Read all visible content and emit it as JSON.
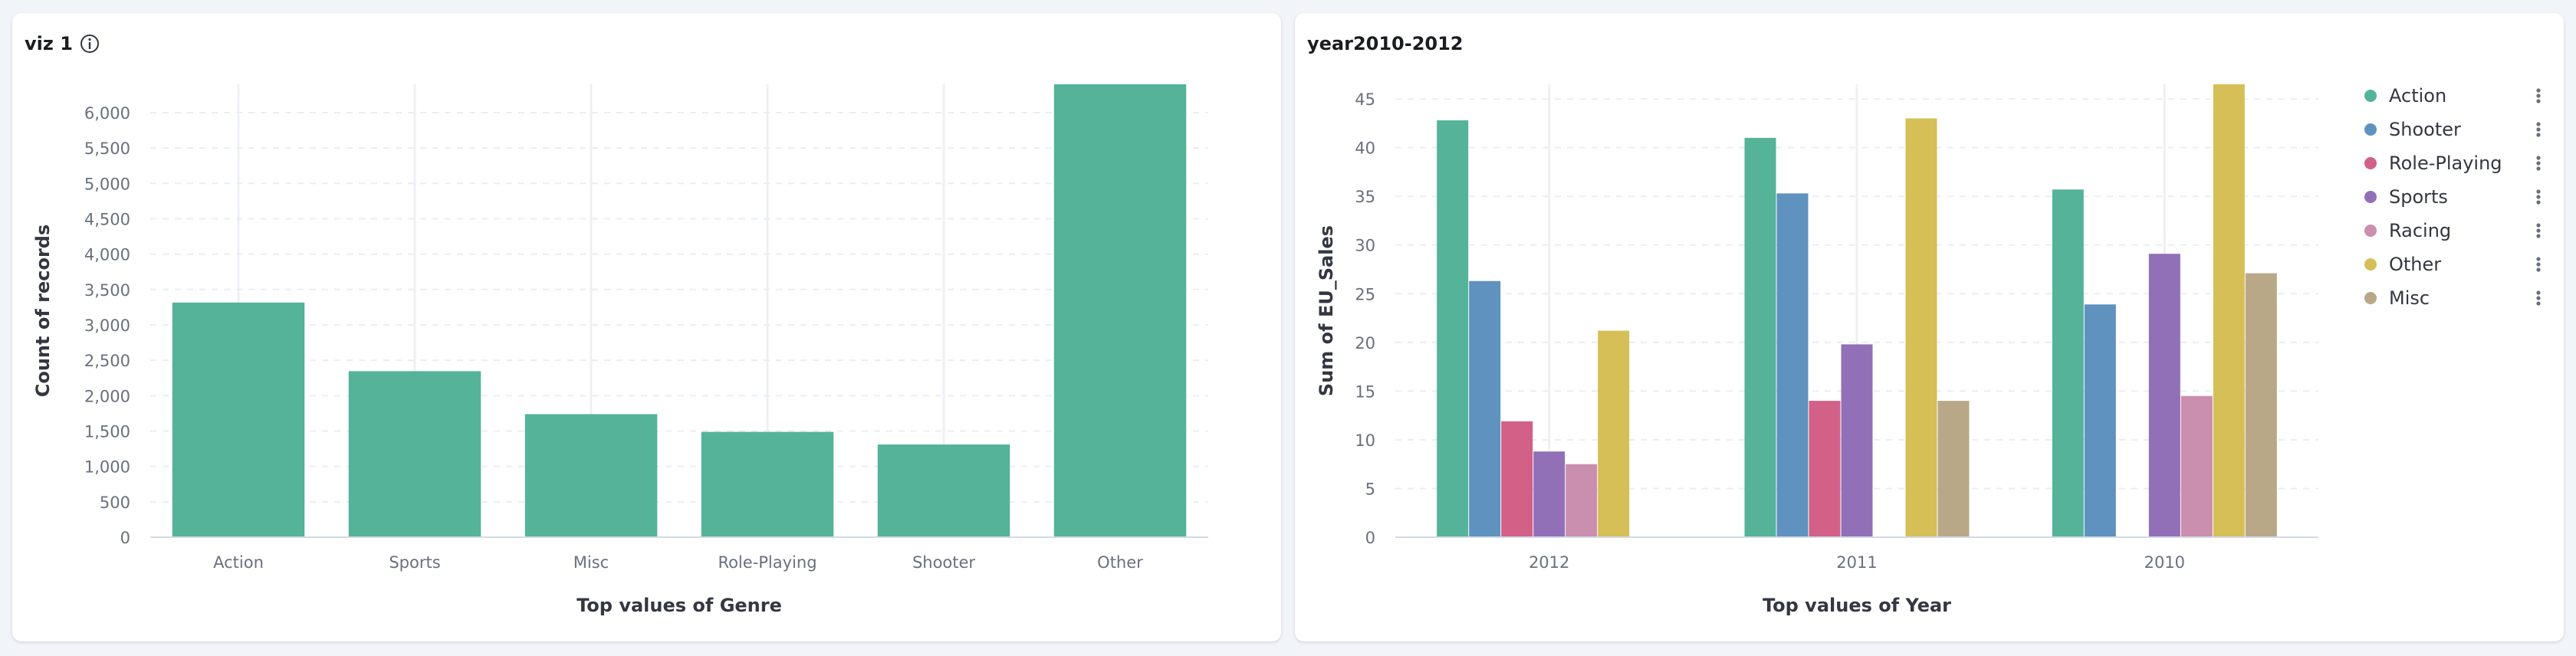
{
  "panels": [
    {
      "title": "viz 1"
    },
    {
      "title": "year2010-2012"
    }
  ],
  "icons": {
    "info": "info-icon",
    "legend_action": "more-vertical-icon"
  },
  "chart_data": [
    {
      "type": "bar",
      "title": "viz 1",
      "xlabel": "Top values of Genre",
      "ylabel": "Count of records",
      "categories": [
        "Action",
        "Sports",
        "Misc",
        "Role-Playing",
        "Shooter",
        "Other"
      ],
      "values": [
        3316,
        2346,
        1739,
        1488,
        1310,
        6400
      ],
      "ylim": [
        0,
        6400
      ],
      "yticks": [
        0,
        500,
        1000,
        1500,
        2000,
        2500,
        3000,
        3500,
        4000,
        4500,
        5000,
        5500,
        6000
      ],
      "ytick_labels": [
        "0",
        "500",
        "1,000",
        "1,500",
        "2,000",
        "2,500",
        "3,000",
        "3,500",
        "4,000",
        "4,500",
        "5,000",
        "5,500",
        "6,000"
      ],
      "grid": true,
      "color": "#54b399"
    },
    {
      "type": "bar",
      "title": "year2010-2012",
      "xlabel": "Top values of Year",
      "ylabel": "Sum of EU_Sales",
      "categories": [
        "2012",
        "2011",
        "2010"
      ],
      "series": [
        {
          "name": "Action",
          "color": "#54b399",
          "values": [
            42.8,
            41.0,
            35.7
          ]
        },
        {
          "name": "Shooter",
          "color": "#6092c0",
          "values": [
            26.3,
            35.3,
            23.9
          ]
        },
        {
          "name": "Role-Playing",
          "color": "#d36086",
          "values": [
            11.9,
            14.0,
            null
          ]
        },
        {
          "name": "Sports",
          "color": "#9170b8",
          "values": [
            8.8,
            19.8,
            29.1
          ]
        },
        {
          "name": "Racing",
          "color": "#ca8eae",
          "values": [
            7.5,
            null,
            14.5
          ]
        },
        {
          "name": "Other",
          "color": "#d6bf57",
          "values": [
            21.2,
            43.0,
            46.5
          ]
        },
        {
          "name": "Misc",
          "color": "#b9a888",
          "values": [
            null,
            14.0,
            27.1
          ]
        }
      ],
      "ylim": [
        0,
        46.5
      ],
      "yticks": [
        0,
        5,
        10,
        15,
        20,
        25,
        30,
        35,
        40,
        45
      ],
      "ytick_labels": [
        "0",
        "5",
        "10",
        "15",
        "20",
        "25",
        "30",
        "35",
        "40",
        "45"
      ],
      "grid": true,
      "legend_position": "right"
    }
  ]
}
